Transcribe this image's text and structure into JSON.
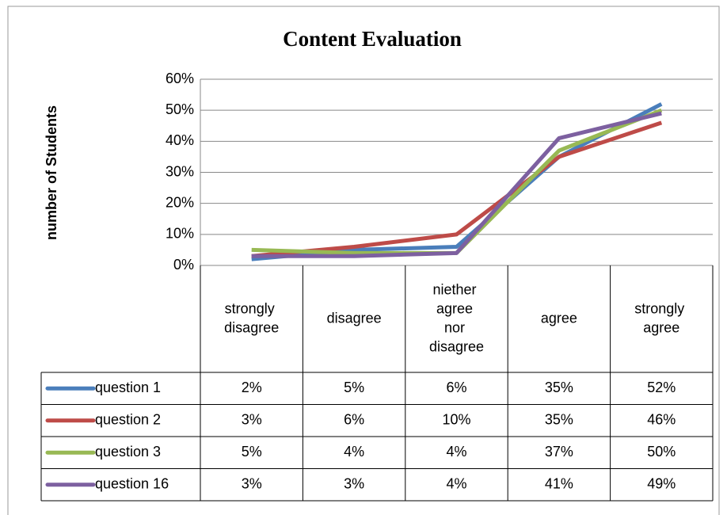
{
  "chart_data": {
    "type": "line",
    "title": "Content Evaluation",
    "ylabel": "number of Students",
    "categories": [
      "strongly disagree",
      "disagree",
      "niether agree nor disagree",
      "agree",
      "strongly agree"
    ],
    "series": [
      {
        "name": "question 1",
        "color": "#4a7ebb",
        "values": [
          2,
          5,
          6,
          35,
          52
        ],
        "value_labels": [
          "2%",
          "5%",
          "6%",
          "35%",
          "52%"
        ]
      },
      {
        "name": "question 2",
        "color": "#be4b48",
        "values": [
          3,
          6,
          10,
          35,
          46
        ],
        "value_labels": [
          "3%",
          "6%",
          "10%",
          "35%",
          "46%"
        ]
      },
      {
        "name": "question 3",
        "color": "#98b954",
        "values": [
          5,
          4,
          4,
          37,
          50
        ],
        "value_labels": [
          "5%",
          "4%",
          "4%",
          "37%",
          "50%"
        ]
      },
      {
        "name": "question 16",
        "color": "#7d60a0",
        "values": [
          3,
          3,
          4,
          41,
          49
        ],
        "value_labels": [
          "3%",
          "3%",
          "4%",
          "41%",
          "49%"
        ]
      }
    ],
    "ylim": [
      0,
      60
    ],
    "yticks": [
      {
        "value": 0,
        "label": "0%"
      },
      {
        "value": 10,
        "label": "10%"
      },
      {
        "value": 20,
        "label": "20%"
      },
      {
        "value": 30,
        "label": "30%"
      },
      {
        "value": 40,
        "label": "40%"
      },
      {
        "value": 50,
        "label": "50%"
      },
      {
        "value": 60,
        "label": "60%"
      }
    ],
    "grid": true
  }
}
